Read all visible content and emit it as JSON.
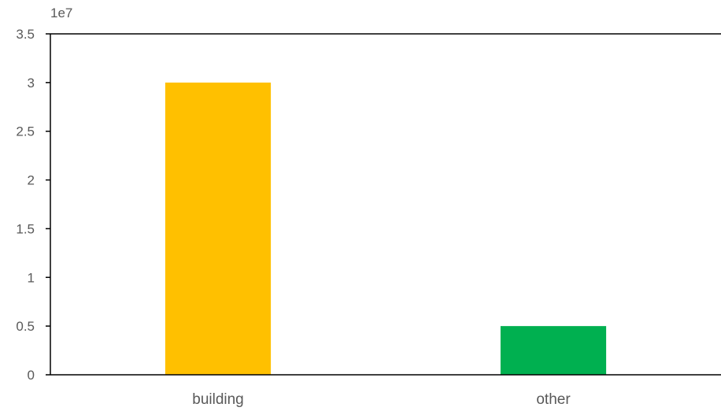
{
  "chart_data": {
    "type": "bar",
    "categories": [
      "building",
      "other"
    ],
    "values": [
      30000000,
      5000000
    ],
    "colors": [
      "#FFC000",
      "#00B050"
    ],
    "exponent_label": "1e7",
    "y_ticks": [
      "0",
      "0.5",
      "1",
      "1.5",
      "2",
      "2.5",
      "3",
      "3.5"
    ],
    "ylim": [
      0,
      35000000
    ],
    "grid": false,
    "legend": "none"
  }
}
